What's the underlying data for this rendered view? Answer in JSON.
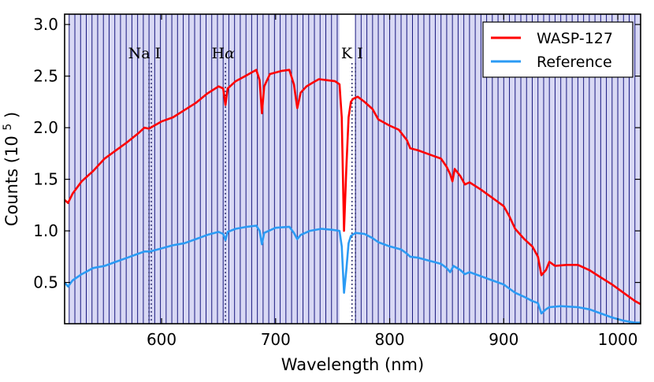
{
  "chart_data": {
    "type": "line",
    "xlabel": "Wavelength (nm)",
    "ylabel": "Counts (10",
    "ylabel_exponent": "5",
    "ylabel_close": ")",
    "xlim": [
      515,
      1020
    ],
    "ylim": [
      0.1,
      3.1
    ],
    "xticks": [
      600,
      700,
      800,
      900,
      1000
    ],
    "yticks": [
      0.5,
      1.0,
      1.5,
      2.0,
      2.5,
      3.0
    ],
    "xtick_labels": [
      "600",
      "700",
      "800",
      "900",
      "1000"
    ],
    "ytick_labels": [
      "0.5",
      "1.0",
      "1.5",
      "2.0",
      "2.5",
      "3.0"
    ],
    "grid": false,
    "legend_position": "top-right",
    "bin_shading_color": "#d8d8f4",
    "bin_line_color": "#1a1a80",
    "bins": {
      "segments": [
        {
          "start": 519,
          "end": 756,
          "step": 5
        },
        {
          "start": 770,
          "end": 1020,
          "step": 5
        }
      ]
    },
    "annotations": [
      {
        "label_text": "Na I",
        "label_x": 585,
        "lines": [
          589,
          591
        ]
      },
      {
        "label_text": "H",
        "label_symbol": "α",
        "label_x": 654,
        "lines": [
          656
        ]
      },
      {
        "label_text": "K I",
        "label_x": 767,
        "lines": [
          767,
          770
        ]
      }
    ],
    "series": [
      {
        "name": "WASP-127",
        "color": "#ff0000",
        "points": [
          [
            515,
            1.3
          ],
          [
            518,
            1.27
          ],
          [
            522,
            1.36
          ],
          [
            530,
            1.48
          ],
          [
            540,
            1.58
          ],
          [
            550,
            1.7
          ],
          [
            560,
            1.78
          ],
          [
            570,
            1.86
          ],
          [
            580,
            1.95
          ],
          [
            585,
            2.0
          ],
          [
            589,
            1.99
          ],
          [
            592,
            2.01
          ],
          [
            600,
            2.06
          ],
          [
            610,
            2.1
          ],
          [
            620,
            2.17
          ],
          [
            630,
            2.24
          ],
          [
            640,
            2.33
          ],
          [
            650,
            2.4
          ],
          [
            654,
            2.38
          ],
          [
            656,
            2.22
          ],
          [
            658,
            2.38
          ],
          [
            665,
            2.45
          ],
          [
            675,
            2.51
          ],
          [
            683,
            2.56
          ],
          [
            686,
            2.46
          ],
          [
            688,
            2.14
          ],
          [
            690,
            2.4
          ],
          [
            695,
            2.52
          ],
          [
            705,
            2.55
          ],
          [
            712,
            2.56
          ],
          [
            716,
            2.42
          ],
          [
            719,
            2.19
          ],
          [
            722,
            2.34
          ],
          [
            727,
            2.4
          ],
          [
            733,
            2.44
          ],
          [
            738,
            2.47
          ],
          [
            745,
            2.46
          ],
          [
            752,
            2.45
          ],
          [
            756,
            2.42
          ],
          [
            758,
            2.1
          ],
          [
            760,
            1.0
          ],
          [
            762,
            1.6
          ],
          [
            764,
            2.1
          ],
          [
            766,
            2.25
          ],
          [
            768,
            2.28
          ],
          [
            772,
            2.3
          ],
          [
            778,
            2.25
          ],
          [
            785,
            2.18
          ],
          [
            790,
            2.08
          ],
          [
            800,
            2.02
          ],
          [
            808,
            1.98
          ],
          [
            815,
            1.88
          ],
          [
            818,
            1.8
          ],
          [
            825,
            1.78
          ],
          [
            835,
            1.74
          ],
          [
            845,
            1.7
          ],
          [
            850,
            1.62
          ],
          [
            853,
            1.55
          ],
          [
            855,
            1.48
          ],
          [
            857,
            1.6
          ],
          [
            862,
            1.53
          ],
          [
            866,
            1.45
          ],
          [
            870,
            1.47
          ],
          [
            880,
            1.4
          ],
          [
            890,
            1.32
          ],
          [
            900,
            1.24
          ],
          [
            905,
            1.14
          ],
          [
            910,
            1.02
          ],
          [
            918,
            0.92
          ],
          [
            925,
            0.85
          ],
          [
            930,
            0.75
          ],
          [
            933,
            0.57
          ],
          [
            937,
            0.62
          ],
          [
            940,
            0.7
          ],
          [
            945,
            0.66
          ],
          [
            955,
            0.67
          ],
          [
            965,
            0.67
          ],
          [
            975,
            0.62
          ],
          [
            985,
            0.55
          ],
          [
            995,
            0.48
          ],
          [
            1005,
            0.4
          ],
          [
            1015,
            0.32
          ],
          [
            1020,
            0.29
          ]
        ]
      },
      {
        "name": "Reference",
        "color": "#2b9bf4",
        "points": [
          [
            515,
            0.5
          ],
          [
            518,
            0.46
          ],
          [
            522,
            0.52
          ],
          [
            530,
            0.58
          ],
          [
            540,
            0.64
          ],
          [
            550,
            0.66
          ],
          [
            560,
            0.7
          ],
          [
            570,
            0.74
          ],
          [
            580,
            0.78
          ],
          [
            585,
            0.8
          ],
          [
            590,
            0.8
          ],
          [
            600,
            0.83
          ],
          [
            610,
            0.86
          ],
          [
            620,
            0.88
          ],
          [
            630,
            0.92
          ],
          [
            640,
            0.96
          ],
          [
            650,
            0.99
          ],
          [
            654,
            0.97
          ],
          [
            656,
            0.91
          ],
          [
            658,
            0.99
          ],
          [
            665,
            1.02
          ],
          [
            675,
            1.04
          ],
          [
            683,
            1.05
          ],
          [
            686,
            1.0
          ],
          [
            688,
            0.87
          ],
          [
            690,
            0.98
          ],
          [
            700,
            1.03
          ],
          [
            712,
            1.04
          ],
          [
            716,
            0.98
          ],
          [
            719,
            0.92
          ],
          [
            722,
            0.96
          ],
          [
            730,
            1.0
          ],
          [
            740,
            1.02
          ],
          [
            750,
            1.01
          ],
          [
            756,
            1.0
          ],
          [
            758,
            0.85
          ],
          [
            760,
            0.4
          ],
          [
            762,
            0.62
          ],
          [
            764,
            0.88
          ],
          [
            766,
            0.95
          ],
          [
            770,
            0.98
          ],
          [
            778,
            0.97
          ],
          [
            785,
            0.93
          ],
          [
            790,
            0.89
          ],
          [
            800,
            0.85
          ],
          [
            810,
            0.82
          ],
          [
            815,
            0.78
          ],
          [
            818,
            0.75
          ],
          [
            825,
            0.74
          ],
          [
            835,
            0.71
          ],
          [
            845,
            0.68
          ],
          [
            850,
            0.64
          ],
          [
            853,
            0.6
          ],
          [
            856,
            0.66
          ],
          [
            862,
            0.62
          ],
          [
            866,
            0.58
          ],
          [
            870,
            0.6
          ],
          [
            880,
            0.56
          ],
          [
            890,
            0.52
          ],
          [
            900,
            0.48
          ],
          [
            905,
            0.44
          ],
          [
            910,
            0.4
          ],
          [
            918,
            0.36
          ],
          [
            925,
            0.32
          ],
          [
            930,
            0.3
          ],
          [
            933,
            0.2
          ],
          [
            937,
            0.24
          ],
          [
            940,
            0.26
          ],
          [
            950,
            0.27
          ],
          [
            965,
            0.26
          ],
          [
            975,
            0.24
          ],
          [
            985,
            0.2
          ],
          [
            995,
            0.16
          ],
          [
            1005,
            0.13
          ],
          [
            1015,
            0.11
          ],
          [
            1020,
            0.11
          ]
        ]
      }
    ]
  }
}
